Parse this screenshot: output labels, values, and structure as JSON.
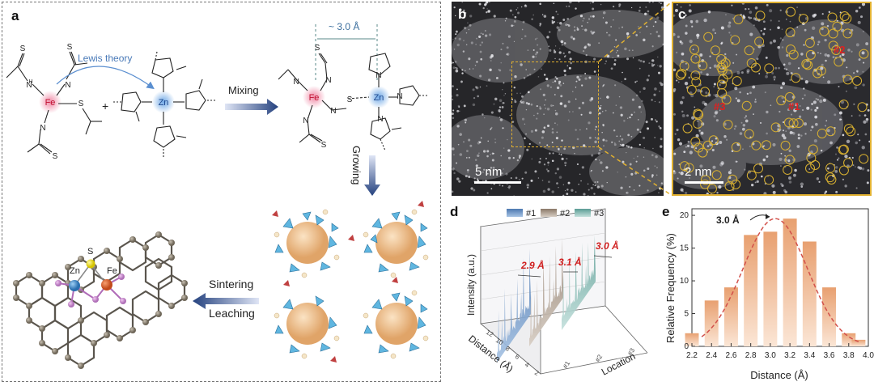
{
  "panels": {
    "a": "a",
    "b": "b",
    "c": "c",
    "d": "d",
    "e": "e"
  },
  "panel_a": {
    "lewis": "Lewis theory",
    "distance": "~ 3.0 Å",
    "mixing": "Mixing",
    "growing": "Growing",
    "sintering": "Sintering",
    "leaching": "Leaching",
    "fe": "Fe",
    "zn": "Zn",
    "s": "S",
    "plus": "+"
  },
  "panel_b": {
    "scale": "5 nm"
  },
  "panel_c": {
    "scale": "2 nm",
    "markers": [
      "#1",
      "#2",
      "#3"
    ]
  },
  "chart_data": [
    {
      "type": "line",
      "panel": "d",
      "series": [
        {
          "name": "#1"
        },
        {
          "name": "#2"
        },
        {
          "name": "#3"
        }
      ],
      "ylabel": "Intensity (a.u.)",
      "xlabel": "Distance (Å)",
      "zlabel": "Location",
      "x_ticks": [
        "12",
        "10",
        "8",
        "6",
        "4",
        "2"
      ],
      "z_ticks": [
        "#1",
        "#2",
        "#3"
      ],
      "annotations": [
        "2.9 Å",
        "3.1 Å",
        "3.0 Å"
      ]
    },
    {
      "type": "bar",
      "panel": "e",
      "categories": [
        "2.2",
        "2.4",
        "2.6",
        "2.8",
        "3.0",
        "3.2",
        "3.4",
        "3.6",
        "3.8"
      ],
      "values": [
        2,
        7,
        9,
        17,
        17.5,
        19.5,
        16,
        9,
        2
      ],
      "extra_bar": {
        "x": 3.9,
        "value": 1
      },
      "xlabel": "Distance (Å)",
      "ylabel": "Relative Frequency (%)",
      "xlim": [
        2.2,
        4.0
      ],
      "ylim": [
        0,
        21
      ],
      "x_ticks": [
        "2.2",
        "2.4",
        "2.6",
        "2.8",
        "3.0",
        "3.2",
        "3.4",
        "3.6",
        "3.8",
        "4.0"
      ],
      "y_ticks": [
        "0",
        "5",
        "10",
        "15",
        "20"
      ],
      "annotation": "3.0 Å",
      "colors": {
        "bar_top": "#e8a070",
        "bar_bottom": "#fbe6d6",
        "fit": "#d2504a"
      }
    }
  ]
}
